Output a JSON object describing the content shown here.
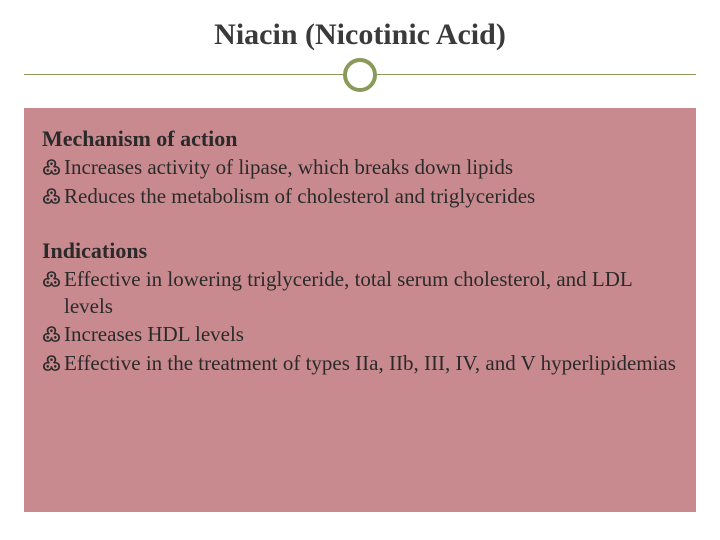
{
  "slide": {
    "title": "Niacin (Nicotinic Acid)",
    "title_fontsize": 30,
    "title_color": "#3a3a3a",
    "background_color": "#ffffff",
    "accent_color": "#8a9a5b",
    "content_background": "#c98a8f",
    "body_fontsize": 21,
    "heading_fontsize": 22,
    "text_color": "#2a2a2a",
    "bullet_glyph": "߷",
    "sections": [
      {
        "heading": "Mechanism of action",
        "bullets": [
          "Increases activity of lipase, which breaks down lipids",
          "Reduces the metabolism of cholesterol and triglycerides"
        ]
      },
      {
        "heading": "Indications",
        "bullets": [
          "Effective in lowering triglyceride, total serum cholesterol, and LDL levels",
          "Increases HDL levels",
          "Effective in the treatment of types IIa, IIb, III, IV, and V hyperlipidemias"
        ]
      }
    ]
  }
}
